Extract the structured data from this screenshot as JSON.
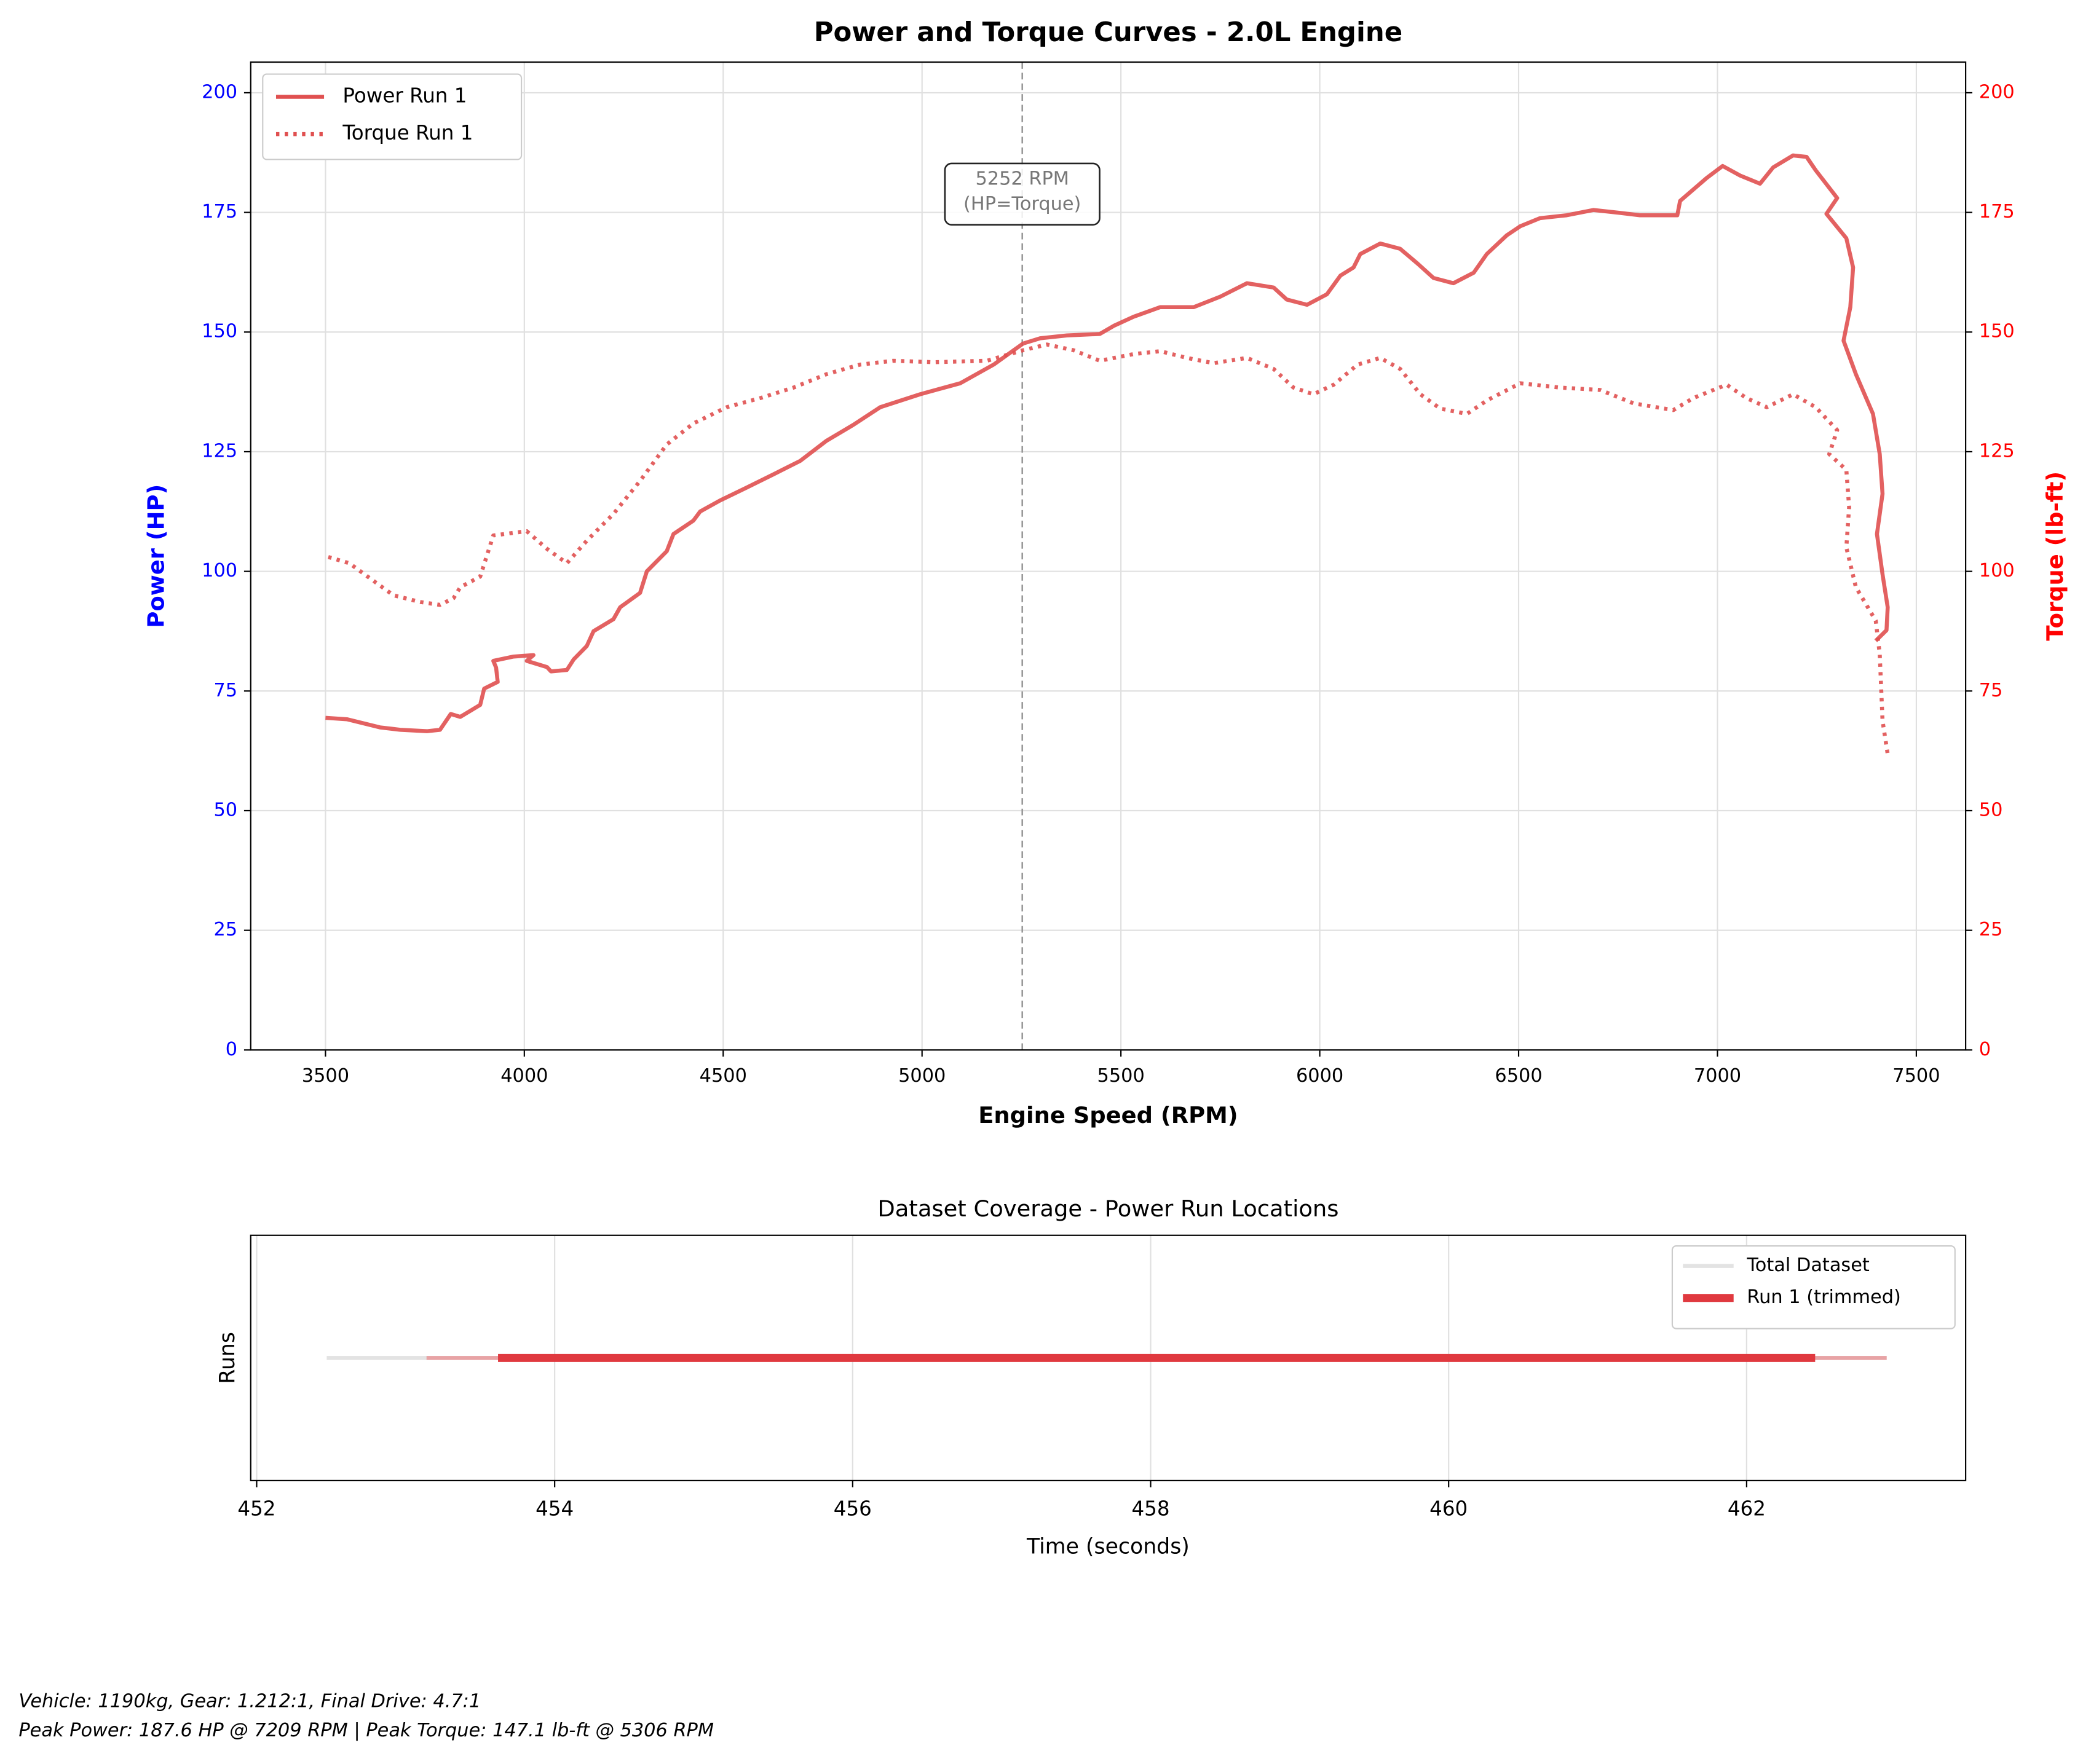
{
  "chart_data": [
    {
      "type": "line",
      "title": "Power and Torque Curves - 2.0L Engine",
      "xlabel": "Engine Speed (RPM)",
      "ylabel": "Power (HP)",
      "y2label": "Torque (lb-ft)",
      "y_color": "blue",
      "y2_color": "red",
      "xlim": [
        3312,
        7624
      ],
      "ylim": [
        0,
        206.4
      ],
      "y2lim": [
        0,
        206.4
      ],
      "xticks": [
        3500,
        4000,
        4500,
        5000,
        5500,
        6000,
        6500,
        7000,
        7500
      ],
      "yticks": [
        0,
        25,
        50,
        75,
        100,
        125,
        150,
        175,
        200
      ],
      "y2ticks": [
        0,
        25,
        50,
        75,
        100,
        125,
        150,
        175,
        200
      ],
      "grid": true,
      "legend": "upper left",
      "annotation": {
        "x": 5252,
        "text": [
          "5252 RPM",
          "(HP=Torque)"
        ]
      },
      "series": [
        {
          "name": "Power Run 1",
          "color": "#e05050",
          "style": "solid",
          "x": [
            3500,
            3554,
            3637,
            3688,
            3755,
            3788,
            3815,
            3839,
            3889,
            3899,
            3933,
            3929,
            3922,
            3973,
            4023,
            4006,
            4057,
            4067,
            4107,
            4124,
            4157,
            4174,
            4224,
            4241,
            4291,
            4308,
            4358,
            4375,
            4425,
            4442,
            4492,
            4559,
            4627,
            4694,
            4760,
            4827,
            4895,
            4995,
            5096,
            5180,
            5254,
            5297,
            5364,
            5447,
            5482,
            5532,
            5599,
            5683,
            5750,
            5817,
            5884,
            5917,
            5968,
            6018,
            6052,
            6085,
            6102,
            6152,
            6202,
            6246,
            6286,
            6336,
            6387,
            6420,
            6470,
            6504,
            6554,
            6621,
            6688,
            6755,
            6805,
            6899,
            6906,
            6973,
            7013,
            7057,
            7107,
            7140,
            7190,
            7224,
            7247,
            7301,
            7274,
            7324,
            7341,
            7334,
            7317,
            7348,
            7391,
            7408,
            7415,
            7401,
            7415,
            7428,
            7425,
            7398
          ],
          "values": [
            69.4,
            69.1,
            67.4,
            66.9,
            66.6,
            66.9,
            70.2,
            69.6,
            72.1,
            75.5,
            76.9,
            79.9,
            81.3,
            82.2,
            82.5,
            81.3,
            80,
            79.1,
            79.4,
            81.6,
            84.4,
            87.5,
            90,
            92.5,
            95.5,
            100,
            104.2,
            107.8,
            110.6,
            112.5,
            114.8,
            117.5,
            120.3,
            123.1,
            127.3,
            130.6,
            134.3,
            137,
            139.3,
            143.2,
            147.6,
            148.7,
            149.3,
            149.6,
            151.3,
            153.2,
            155.2,
            155.2,
            157.4,
            160.2,
            159.3,
            156.8,
            155.7,
            157.9,
            161.8,
            163.5,
            166.3,
            168.5,
            167.4,
            164.3,
            161.3,
            160.2,
            162.4,
            166.3,
            170.2,
            172.1,
            173.8,
            174.4,
            175.5,
            174.9,
            174.4,
            174.4,
            177.4,
            182.2,
            184.7,
            182.7,
            181,
            184.4,
            186.9,
            186.6,
            183.8,
            178,
            174.7,
            169.6,
            163.5,
            155.2,
            148.2,
            141.2,
            132.9,
            124.5,
            116.2,
            107.8,
            99.4,
            92.5,
            87.7,
            85.5
          ]
        },
        {
          "name": "Torque Run 1",
          "color": "#e05050",
          "style": "dotted",
          "axis": "y2",
          "x": [
            3507,
            3560,
            3621,
            3671,
            3738,
            3788,
            3822,
            3839,
            3889,
            3922,
            4006,
            4057,
            4107,
            4157,
            4224,
            4291,
            4358,
            4425,
            4509,
            4593,
            4677,
            4760,
            4844,
            4928,
            5029,
            5163,
            5254,
            5314,
            5381,
            5447,
            5532,
            5599,
            5666,
            5733,
            5817,
            5884,
            5934,
            5984,
            6035,
            6095,
            6152,
            6202,
            6253,
            6303,
            6370,
            6420,
            6504,
            6604,
            6705,
            6789,
            6889,
            6939,
            7023,
            7073,
            7124,
            7190,
            7247,
            7301,
            7281,
            7324,
            7331,
            7324,
            7348,
            7398,
            7408,
            7415,
            7428
          ],
          "values": [
            103,
            101.7,
            98,
            95,
            93.6,
            93,
            94.4,
            96.7,
            98.9,
            107.5,
            108.4,
            104.7,
            101.7,
            106.4,
            112,
            118.9,
            126.5,
            130.9,
            134.3,
            136.2,
            138.4,
            141.2,
            143.2,
            144,
            143.7,
            144,
            146.2,
            147.4,
            146.2,
            144,
            145.4,
            146,
            144.6,
            143.5,
            144.6,
            142.3,
            138.4,
            137,
            139,
            143.2,
            144.6,
            142.3,
            137,
            134,
            132.9,
            135.7,
            139.3,
            138.4,
            137.9,
            135.1,
            133.7,
            136.2,
            139,
            136.2,
            134.3,
            137,
            134.3,
            129.5,
            124.5,
            121.2,
            113.4,
            105,
            96.7,
            89.7,
            82.7,
            68.8,
            61.8
          ]
        }
      ]
    },
    {
      "type": "timeline",
      "title": "Dataset Coverage - Power Run Locations",
      "xlabel": "Time (seconds)",
      "ylabel": "Runs",
      "xlim": [
        451.96,
        463.47
      ],
      "xticks": [
        452,
        454,
        456,
        458,
        460,
        462
      ],
      "grid": true,
      "legend": "upper right",
      "segments": [
        {
          "name": "Total Dataset",
          "color": "#e3e3e3",
          "linewidth": 3,
          "start": 452.47,
          "end": 462.94
        },
        {
          "color": "#e8a3a5",
          "linewidth": 3,
          "start": 453.14,
          "end": 462.94
        },
        {
          "name": "Run 1 (trimmed)",
          "color": "#e0393f",
          "linewidth": 6,
          "start": 453.62,
          "end": 462.46
        }
      ]
    }
  ],
  "notes": [
    "Vehicle: 1190kg, Gear: 1.212:1, Final Drive: 4.7:1",
    "Peak Power: 187.6 HP @ 7209 RPM | Peak Torque: 147.1 lb-ft @ 5306 RPM"
  ]
}
